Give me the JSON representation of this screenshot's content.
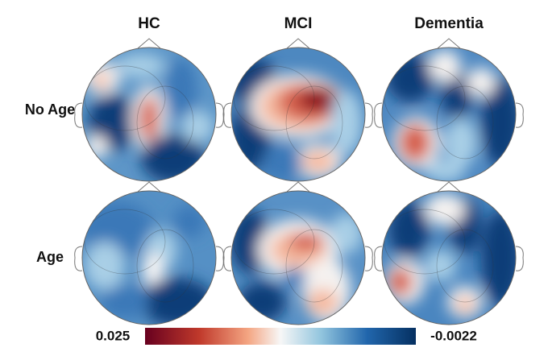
{
  "columns": [
    "HC",
    "MCI",
    "Dementia"
  ],
  "rows": [
    "No Age",
    "Age"
  ],
  "colorbar": {
    "left_label": "0.025",
    "right_label": "-0.0022"
  }
}
